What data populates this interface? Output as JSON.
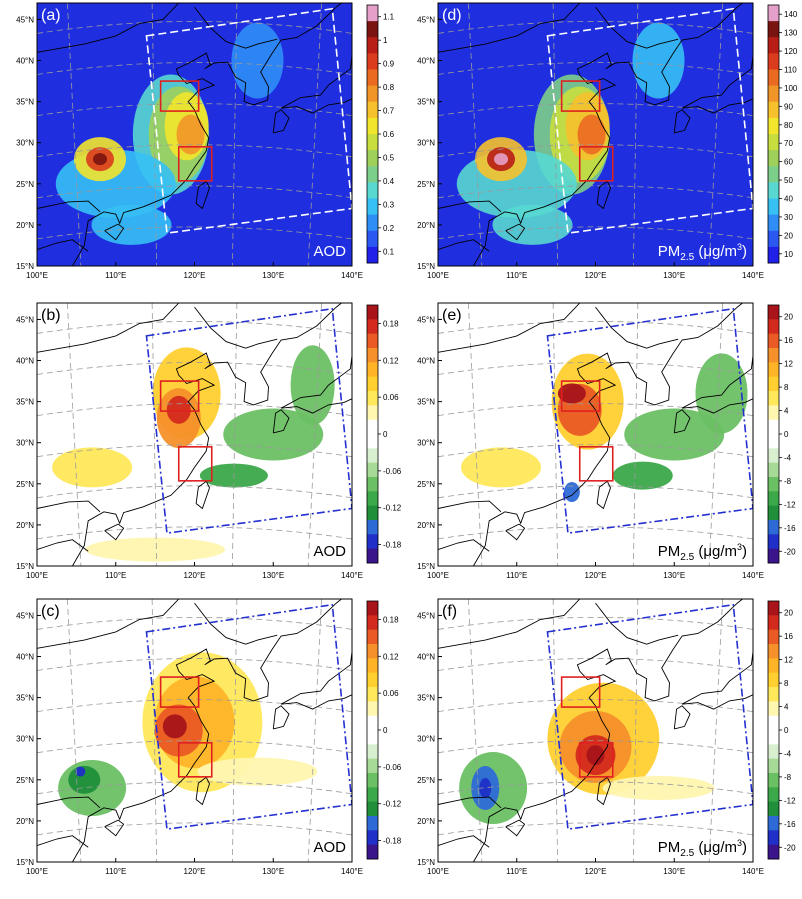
{
  "figure": {
    "lat_labels": [
      "45°N",
      "40°N",
      "35°N",
      "30°N",
      "25°N",
      "20°N",
      "15°N"
    ],
    "lon_labels": [
      "100°E",
      "110°E",
      "120°E",
      "130°E",
      "140°E"
    ],
    "colors": {
      "background_blue": "#1f2fe0",
      "domain_box_white": "#ffffff",
      "domain_box_blue": "#2430d0",
      "region_box": "#e02020",
      "coast": "#000000"
    }
  },
  "chart_data": [
    {
      "panel": "(a)",
      "type": "heatmap",
      "variable": "AOD",
      "colorbar_ticks": [
        "1.1",
        "1",
        "0.9",
        "0.8",
        "0.7",
        "0.6",
        "0.5",
        "0.4",
        "0.3",
        "0.2",
        "0.1"
      ],
      "colorbar_range": [
        0.1,
        1.1
      ],
      "xlim": [
        100,
        140
      ],
      "ylim": [
        15,
        47
      ]
    },
    {
      "panel": "(d)",
      "type": "heatmap",
      "variable": "PM2.5 (μg/m3)",
      "variable_main": "PM",
      "variable_sub": "2.5",
      "variable_unit": " (μg/m",
      "variable_sup": "3",
      "variable_close": ")",
      "colorbar_ticks": [
        "140",
        "130",
        "120",
        "110",
        "100",
        "90",
        "80",
        "70",
        "60",
        "50",
        "40",
        "30",
        "20",
        "10"
      ],
      "colorbar_range": [
        10,
        140
      ],
      "xlim": [
        100,
        140
      ],
      "ylim": [
        15,
        47
      ]
    },
    {
      "panel": "(b)",
      "type": "heatmap",
      "variable": "AOD",
      "colorbar_ticks": [
        "0.18",
        "0.12",
        "0.06",
        "0",
        "-0.06",
        "-0.12",
        "-0.18"
      ],
      "colorbar_range": [
        -0.18,
        0.18
      ],
      "xlim": [
        100,
        140
      ],
      "ylim": [
        15,
        47
      ]
    },
    {
      "panel": "(e)",
      "type": "heatmap",
      "variable": "PM2.5 (μg/m3)",
      "variable_main": "PM",
      "variable_sub": "2.5",
      "variable_unit": " (μg/m",
      "variable_sup": "3",
      "variable_close": ")",
      "colorbar_ticks": [
        "20",
        "16",
        "12",
        "8",
        "4",
        "0",
        "-4",
        "-8",
        "-12",
        "-16",
        "-20"
      ],
      "colorbar_range": [
        -20,
        20
      ],
      "xlim": [
        100,
        140
      ],
      "ylim": [
        15,
        47
      ]
    },
    {
      "panel": "(c)",
      "type": "heatmap",
      "variable": "AOD",
      "colorbar_ticks": [
        "0.18",
        "0.12",
        "0.06",
        "0",
        "-0.06",
        "-0.12",
        "-0.18"
      ],
      "colorbar_range": [
        -0.18,
        0.18
      ],
      "xlim": [
        100,
        140
      ],
      "ylim": [
        15,
        47
      ]
    },
    {
      "panel": "(f)",
      "type": "heatmap",
      "variable": "PM2.5 (μg/m3)",
      "variable_main": "PM",
      "variable_sub": "2.5",
      "variable_unit": " (μg/m",
      "variable_sup": "3",
      "variable_close": ")",
      "colorbar_ticks": [
        "20",
        "16",
        "12",
        "8",
        "4",
        "0",
        "-4",
        "-8",
        "-12",
        "-16",
        "-20"
      ],
      "colorbar_range": [
        -20,
        20
      ],
      "xlim": [
        100,
        140
      ],
      "ylim": [
        15,
        47
      ]
    }
  ]
}
